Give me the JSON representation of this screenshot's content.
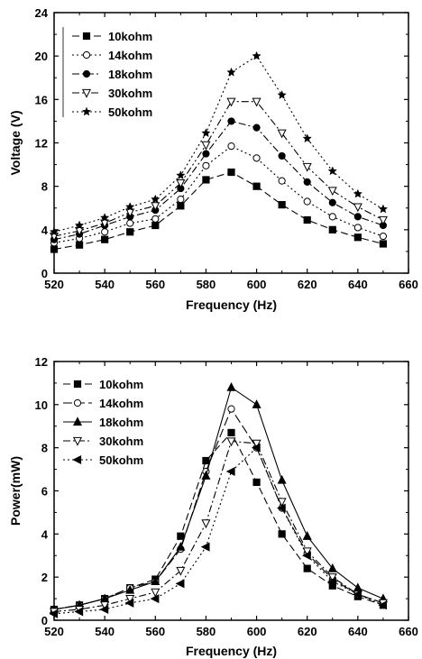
{
  "chart_data": [
    {
      "type": "line",
      "xlabel": "Frequency (Hz)",
      "ylabel": "Voltage (V)",
      "xlim": [
        520,
        660
      ],
      "ylim": [
        0,
        24
      ],
      "xticks": [
        520,
        540,
        560,
        580,
        600,
        620,
        640,
        660
      ],
      "yticks": [
        0,
        4,
        8,
        12,
        16,
        20,
        24
      ],
      "legend_position": "top-left",
      "x": [
        520,
        530,
        540,
        550,
        560,
        570,
        580,
        590,
        600,
        610,
        620,
        630,
        640,
        650
      ],
      "series": [
        {
          "name": "10kohm",
          "marker": "square",
          "dash": "8,4",
          "values": [
            2.2,
            2.6,
            3.1,
            3.8,
            4.4,
            6.2,
            8.6,
            9.3,
            8.0,
            6.3,
            4.9,
            4.0,
            3.3,
            2.7
          ]
        },
        {
          "name": "14kohm",
          "marker": "circle-open",
          "dash": "2,3",
          "values": [
            2.8,
            3.2,
            3.8,
            4.6,
            5.0,
            6.8,
            9.9,
            11.7,
            10.6,
            8.5,
            6.6,
            5.2,
            4.2,
            3.4
          ]
        },
        {
          "name": "18kohm",
          "marker": "circle",
          "dash": "8,3,2,3",
          "values": [
            3.1,
            3.6,
            4.4,
            5.2,
            5.8,
            7.8,
            11.0,
            14.0,
            13.4,
            10.8,
            8.4,
            6.5,
            5.2,
            4.4
          ]
        },
        {
          "name": "30kohm",
          "marker": "triangle-down-open",
          "dash": "8,3,2,3,2,3",
          "values": [
            3.4,
            3.9,
            4.6,
            5.6,
            6.2,
            8.3,
            11.8,
            15.8,
            15.8,
            12.9,
            9.8,
            7.6,
            6.1,
            4.9
          ]
        },
        {
          "name": "50kohm",
          "marker": "star",
          "dash": "2,3",
          "values": [
            3.8,
            4.4,
            5.1,
            6.1,
            6.8,
            9.0,
            12.9,
            18.5,
            20.0,
            16.4,
            12.4,
            9.4,
            7.3,
            5.9
          ]
        }
      ]
    },
    {
      "type": "line",
      "xlabel": "Frequency (Hz)",
      "ylabel": "Power(mW)",
      "xlim": [
        520,
        660
      ],
      "ylim": [
        0,
        12
      ],
      "xticks": [
        520,
        540,
        560,
        580,
        600,
        620,
        640,
        660
      ],
      "yticks": [
        0,
        2,
        4,
        6,
        8,
        10,
        12
      ],
      "legend_position": "top-left",
      "x": [
        520,
        530,
        540,
        550,
        560,
        570,
        580,
        590,
        600,
        610,
        620,
        630,
        640,
        650
      ],
      "series": [
        {
          "name": "10kohm",
          "marker": "square",
          "dash": "8,4",
          "values": [
            0.5,
            0.7,
            1.0,
            1.5,
            1.9,
            3.9,
            7.4,
            8.7,
            6.4,
            4.0,
            2.4,
            1.6,
            1.1,
            0.7
          ]
        },
        {
          "name": "14kohm",
          "marker": "circle-open",
          "dash": "10,4",
          "values": [
            0.5,
            0.7,
            1.0,
            1.5,
            1.8,
            3.3,
            6.9,
            9.8,
            8.0,
            5.2,
            3.1,
            1.9,
            1.2,
            0.8
          ]
        },
        {
          "name": "18kohm",
          "marker": "triangle",
          "dash": "",
          "values": [
            0.5,
            0.7,
            1.0,
            1.4,
            1.8,
            3.4,
            6.7,
            10.8,
            10.0,
            6.5,
            3.9,
            2.4,
            1.5,
            1.0
          ]
        },
        {
          "name": "30kohm",
          "marker": "triangle-down-open",
          "dash": "8,3,2,3",
          "values": [
            0.4,
            0.5,
            0.7,
            1.0,
            1.3,
            2.3,
            4.5,
            8.3,
            8.2,
            5.5,
            3.2,
            2.0,
            1.2,
            0.8
          ]
        },
        {
          "name": "50kohm",
          "marker": "triangle-left",
          "dash": "2,3",
          "values": [
            0.3,
            0.4,
            0.5,
            0.8,
            1.0,
            1.7,
            3.4,
            6.9,
            8.0,
            5.2,
            3.0,
            1.8,
            1.2,
            0.7
          ]
        }
      ]
    }
  ]
}
